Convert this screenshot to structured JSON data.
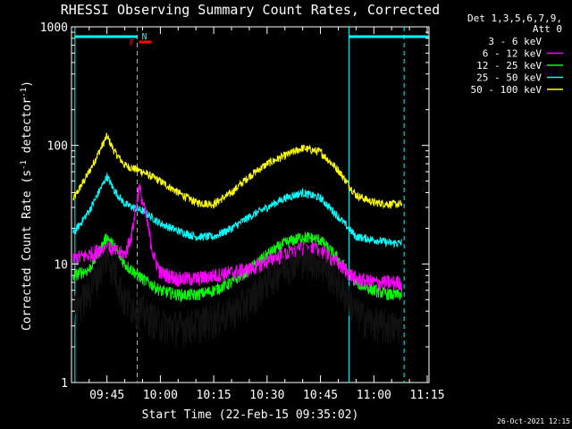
{
  "chart_data": {
    "type": "line",
    "title": "RHESSI Observing Summary Count Rates, Corrected",
    "xlabel": "Start Time (22-Feb-15 09:35:02)",
    "ylabel_main": "Corrected Count Rate (s",
    "ylabel_mid": " detector",
    "ylabel_end": ")",
    "ylabel_sup": "-1",
    "yscale": "log",
    "ylim": [
      1,
      1000
    ],
    "xlim_minutes": [
      575.03,
      675.5
    ],
    "x_ticks": [
      {
        "label": "09:45",
        "minutes": 585
      },
      {
        "label": "10:00",
        "minutes": 600
      },
      {
        "label": "10:15",
        "minutes": 615
      },
      {
        "label": "10:30",
        "minutes": 630
      },
      {
        "label": "10:45",
        "minutes": 645
      },
      {
        "label": "11:00",
        "minutes": 660
      },
      {
        "label": "11:15",
        "minutes": 675
      }
    ],
    "y_ticks": [
      {
        "label": "1",
        "value": 1
      },
      {
        "label": "10",
        "value": 10
      },
      {
        "label": "100",
        "value": 100
      },
      {
        "label": "1000",
        "value": 1000
      }
    ],
    "legend_title_1": "Det 1,3,5,6,7,9,",
    "legend_title_2": "Att 0",
    "legend_position": "right",
    "timestamp": "26-Oct-2021 12:15",
    "markers": {
      "night_label": "N",
      "flare_label": "F",
      "day_color": "#00ffff",
      "flare_color": "#ff0000",
      "boundaries_minutes": [
        576.0,
        593.5,
        653.0,
        668.5
      ],
      "day_intervals": [
        [
          576.0,
          593.5
        ],
        [
          653.0,
          675.5
        ]
      ],
      "flare_interval": [
        594.0,
        597.5
      ]
    },
    "series": [
      {
        "name": "3 - 6 keV",
        "color": "#000000",
        "base": 3.2,
        "noise": 0.35,
        "points": [
          [
            575.5,
            4.0
          ],
          [
            580,
            6.0
          ],
          [
            585,
            12
          ],
          [
            587,
            9
          ],
          [
            590,
            5
          ],
          [
            595,
            4
          ],
          [
            600,
            3.2
          ],
          [
            605,
            3.0
          ],
          [
            610,
            3.2
          ],
          [
            615,
            3.5
          ],
          [
            620,
            4.0
          ],
          [
            625,
            5.0
          ],
          [
            630,
            7.5
          ],
          [
            635,
            10
          ],
          [
            640,
            11.5
          ],
          [
            645,
            10.5
          ],
          [
            650,
            7.0
          ],
          [
            655,
            4.0
          ],
          [
            660,
            3.2
          ],
          [
            665,
            3.0
          ],
          [
            668,
            3.0
          ]
        ]
      },
      {
        "name": "6 - 12 keV",
        "color": "#ff00ff",
        "base": 8,
        "noise": 0.15,
        "points": [
          [
            575.5,
            11
          ],
          [
            580,
            12
          ],
          [
            585,
            14
          ],
          [
            587,
            13
          ],
          [
            590,
            12
          ],
          [
            592,
            18
          ],
          [
            594,
            45
          ],
          [
            596,
            25
          ],
          [
            598,
            12
          ],
          [
            600,
            8.5
          ],
          [
            605,
            7.5
          ],
          [
            610,
            7.5
          ],
          [
            615,
            8
          ],
          [
            620,
            8.5
          ],
          [
            625,
            9
          ],
          [
            630,
            10.5
          ],
          [
            635,
            12
          ],
          [
            640,
            13.5
          ],
          [
            645,
            13
          ],
          [
            650,
            10
          ],
          [
            655,
            7.5
          ],
          [
            660,
            7
          ],
          [
            665,
            7
          ],
          [
            668,
            7
          ]
        ]
      },
      {
        "name": "12 - 25 keV",
        "color": "#00ff00",
        "base": 6,
        "noise": 0.12,
        "points": [
          [
            575.5,
            8
          ],
          [
            580,
            9
          ],
          [
            585,
            17
          ],
          [
            587,
            14
          ],
          [
            590,
            10
          ],
          [
            595,
            7.5
          ],
          [
            600,
            6
          ],
          [
            605,
            5.5
          ],
          [
            610,
            5.5
          ],
          [
            615,
            6
          ],
          [
            620,
            7
          ],
          [
            625,
            9
          ],
          [
            630,
            12
          ],
          [
            635,
            15
          ],
          [
            640,
            17
          ],
          [
            645,
            16
          ],
          [
            650,
            11
          ],
          [
            655,
            7
          ],
          [
            660,
            6
          ],
          [
            665,
            5.5
          ],
          [
            668,
            5.5
          ]
        ]
      },
      {
        "name": "25 - 50 keV",
        "color": "#00ffff",
        "base": 16,
        "noise": 0.08,
        "points": [
          [
            575.5,
            18
          ],
          [
            580,
            28
          ],
          [
            585,
            55
          ],
          [
            587,
            42
          ],
          [
            590,
            32
          ],
          [
            595,
            28
          ],
          [
            600,
            22
          ],
          [
            605,
            19
          ],
          [
            610,
            17
          ],
          [
            615,
            17
          ],
          [
            620,
            20
          ],
          [
            625,
            25
          ],
          [
            630,
            30
          ],
          [
            635,
            36
          ],
          [
            640,
            40
          ],
          [
            645,
            36
          ],
          [
            650,
            25
          ],
          [
            655,
            17
          ],
          [
            660,
            16
          ],
          [
            665,
            15
          ],
          [
            668,
            15
          ]
        ]
      },
      {
        "name": "50 - 100 keV",
        "color": "#ffff00",
        "base": 32,
        "noise": 0.08,
        "points": [
          [
            575.5,
            35
          ],
          [
            580,
            60
          ],
          [
            585,
            120
          ],
          [
            587,
            90
          ],
          [
            590,
            68
          ],
          [
            595,
            60
          ],
          [
            600,
            50
          ],
          [
            605,
            40
          ],
          [
            610,
            33
          ],
          [
            615,
            32
          ],
          [
            620,
            40
          ],
          [
            625,
            55
          ],
          [
            630,
            70
          ],
          [
            635,
            82
          ],
          [
            640,
            95
          ],
          [
            645,
            88
          ],
          [
            650,
            62
          ],
          [
            655,
            38
          ],
          [
            660,
            33
          ],
          [
            665,
            32
          ],
          [
            668,
            32
          ]
        ]
      }
    ]
  }
}
